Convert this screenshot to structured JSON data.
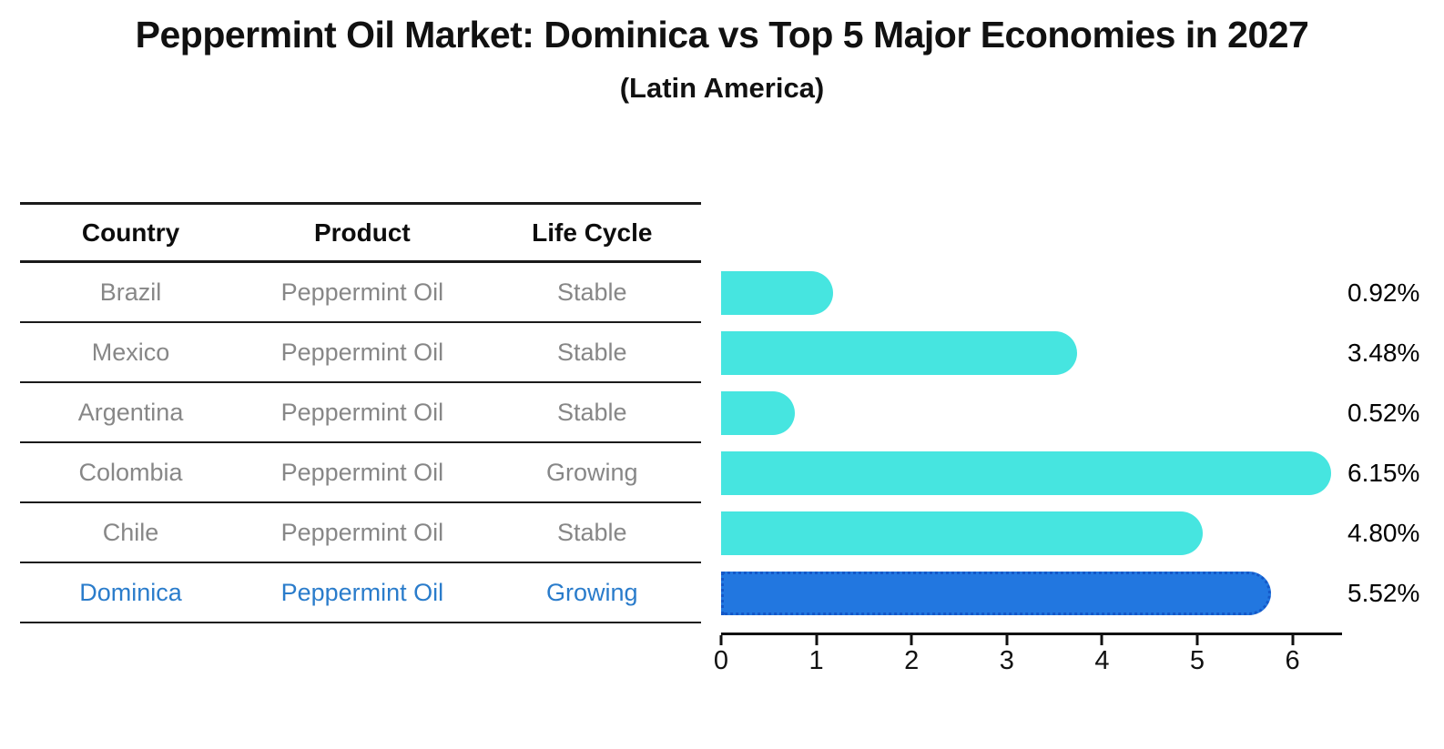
{
  "header": {
    "title": "Peppermint Oil Market: Dominica vs Top 5 Major Economies in 2027",
    "subtitle": "(Latin America)"
  },
  "table": {
    "headers": {
      "country": "Country",
      "product": "Product",
      "life_cycle": "Life Cycle"
    },
    "rows": [
      {
        "country": "Brazil",
        "product": "Peppermint Oil",
        "life_cycle": "Stable",
        "highlight": false
      },
      {
        "country": "Mexico",
        "product": "Peppermint Oil",
        "life_cycle": "Stable",
        "highlight": false
      },
      {
        "country": "Argentina",
        "product": "Peppermint Oil",
        "life_cycle": "Stable",
        "highlight": false
      },
      {
        "country": "Colombia",
        "product": "Peppermint Oil",
        "life_cycle": "Growing",
        "highlight": false
      },
      {
        "country": "Chile",
        "product": "Peppermint Oil",
        "life_cycle": "Stable",
        "highlight": false
      },
      {
        "country": "Dominica",
        "product": "Peppermint Oil",
        "life_cycle": "Growing",
        "highlight": true
      }
    ]
  },
  "chart_data": {
    "type": "bar",
    "orientation": "horizontal",
    "title": "Peppermint Oil Market: Dominica vs Top 5 Major Economies in 2027",
    "subtitle": "(Latin America)",
    "categories": [
      "Brazil",
      "Mexico",
      "Argentina",
      "Colombia",
      "Chile",
      "Dominica"
    ],
    "values": [
      0.92,
      3.48,
      0.52,
      6.15,
      4.8,
      5.52
    ],
    "labels": [
      "0.92%",
      "3.48%",
      "0.52%",
      "6.15%",
      "4.80%",
      "5.52%"
    ],
    "x_ticks": [
      "0",
      "1",
      "2",
      "3",
      "4",
      "5",
      "6"
    ],
    "xlim": [
      0,
      6.5
    ],
    "grid": false,
    "legend": false,
    "highlight_index": 5,
    "bar_color": "#46e5e0",
    "highlight_bar_color": "#2277e0",
    "highlight_border_color": "#1458c8",
    "highlight_text_color": "#2a7ccb"
  }
}
